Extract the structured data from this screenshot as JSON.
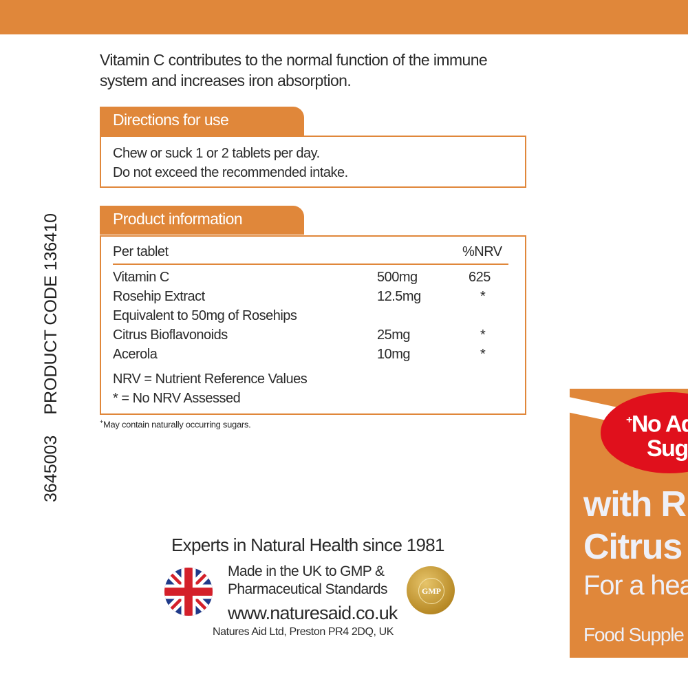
{
  "intro": {
    "line1": "Vitamin C contributes to the normal function of the immune",
    "line2": "system and increases iron absorption."
  },
  "directions": {
    "title": "Directions for use",
    "line1": "Chew or suck 1 or 2 tablets per day.",
    "line2": "Do not exceed the recommended intake."
  },
  "product_info": {
    "title": "Product information",
    "header": {
      "label": "Per tablet",
      "nrv": "%NRV"
    },
    "rows": [
      {
        "name": "Vitamin C",
        "amount": "500mg",
        "nrv": "625"
      },
      {
        "name": "Rosehip Extract",
        "amount": "12.5mg",
        "nrv": "*"
      },
      {
        "name": "Equivalent to 50mg of Rosehips",
        "amount": "",
        "nrv": ""
      },
      {
        "name": "Citrus Bioflavonoids",
        "amount": "25mg",
        "nrv": "*"
      },
      {
        "name": "Acerola",
        "amount": "10mg",
        "nrv": "*"
      }
    ],
    "note1": "NRV = Nutrient Reference Values",
    "note2": "* = No NRV Assessed"
  },
  "footnote": {
    "mark": "+",
    "text": "May contain naturally occurring sugars."
  },
  "codes": {
    "barcode_number": "3645003",
    "product_code": "PRODUCT CODE 136410"
  },
  "brand": {
    "experts": "Experts in Natural Health since 1981",
    "made_line1": "Made in the UK to GMP &",
    "made_line2": "Pharmaceutical Standards",
    "website": "www.naturesaid.co.uk",
    "address": "Natures Aid Ltd, Preston PR4 2DQ, UK",
    "gmp_seal": "GMP"
  },
  "front_panel": {
    "badge_mark": "+",
    "badge_line1": "No Ad",
    "badge_line2": "Sug",
    "title_line1": "with R",
    "title_line2": "Citrus B",
    "subtitle": "For a hea",
    "category": "Food Supple"
  },
  "colors": {
    "accent": "#e0873a",
    "badge": "#e0101c"
  }
}
